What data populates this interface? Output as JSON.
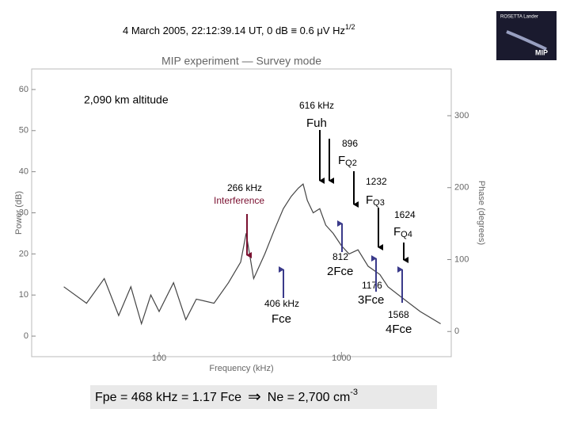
{
  "header": {
    "text": "4 March 2005, 22:12:39.14 UT, 0 dB ≡ 0.6 μV Hz",
    "sup": "1/2"
  },
  "logo": {
    "top": "ROSETTA Lander",
    "bottom": "MIP"
  },
  "chart_data": {
    "type": "line",
    "title": "MIP experiment — Survey mode",
    "xlabel": "Frequency (kHz)",
    "ylabel": "Power (dB)",
    "y2label": "Phase (degrees)",
    "xlog": true,
    "xlim": [
      20,
      4000
    ],
    "xticks": [
      100,
      1000
    ],
    "ylim": [
      -5,
      65
    ],
    "yticks": [
      0,
      10,
      20,
      30,
      40,
      50,
      60
    ],
    "y2lim": [
      -35,
      365
    ],
    "y2ticks": [
      0,
      100,
      200,
      300
    ],
    "color": "#444444",
    "x": [
      30,
      40,
      50,
      60,
      70,
      80,
      90,
      100,
      120,
      140,
      160,
      200,
      240,
      280,
      300,
      330,
      380,
      430,
      480,
      530,
      580,
      616,
      650,
      700,
      760,
      820,
      900,
      1000,
      1100,
      1232,
      1400,
      1624,
      1800,
      2200,
      2700,
      3500
    ],
    "values": [
      12,
      8,
      14,
      5,
      12,
      3,
      10,
      6,
      13,
      4,
      9,
      8,
      13,
      18,
      25,
      14,
      20,
      26,
      31,
      34,
      36,
      37,
      33,
      30,
      31,
      27,
      25,
      22,
      20,
      21,
      17,
      15,
      12,
      9,
      6,
      3
    ]
  },
  "annotations": {
    "altitude": "2,090 km altitude",
    "f616": "616 kHz",
    "fuh": "Fuh",
    "f896": "896",
    "fq2": "F",
    "fq2sub": "Q2",
    "f1232": "1232",
    "fq3": "F",
    "fq3sub": "Q3",
    "f1624": "1624",
    "fq4": "F",
    "fq4sub": "Q4",
    "f266": "266 kHz",
    "interference": "Interference",
    "f812": "812",
    "fce2": "2Fce",
    "f406": "406 kHz",
    "fce": "Fce",
    "f1176": "1176",
    "fce3": "3Fce",
    "f1568": "1568",
    "fce4": "4Fce"
  },
  "footer": {
    "left": "Fpe = 468 kHz = 1.17 Fce",
    "symbol": "⇒",
    "right": "Ne = 2,700 cm",
    "sup": "-3"
  }
}
